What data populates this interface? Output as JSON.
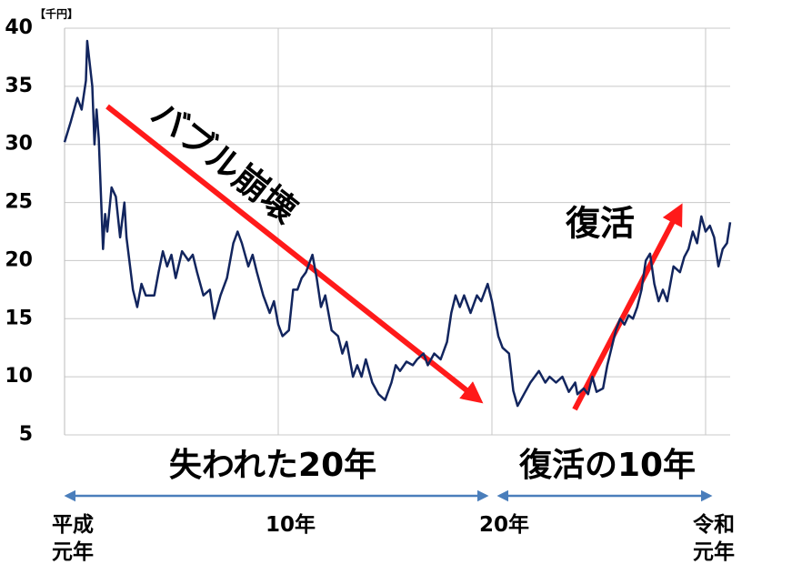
{
  "chart_data": {
    "type": "line",
    "unit_label": "【千円】",
    "color": "#12255e",
    "grid": true,
    "ylim": [
      5,
      40
    ],
    "yticks": [
      5,
      10,
      15,
      20,
      25,
      30,
      35,
      40
    ],
    "xlim": [
      0,
      31.15
    ],
    "xticks": [
      {
        "value": 0,
        "label": "平成元年"
      },
      {
        "value": 10,
        "label": "10年"
      },
      {
        "value": 20,
        "label": "20年"
      },
      {
        "value": 30,
        "label": "令和元年"
      }
    ],
    "x": [
      0,
      0.3,
      0.6,
      0.8,
      1.0,
      1.06,
      1.3,
      1.4,
      1.5,
      1.6,
      1.8,
      1.9,
      2.0,
      2.2,
      2.4,
      2.6,
      2.8,
      2.9,
      3.2,
      3.4,
      3.6,
      3.8,
      4.2,
      4.4,
      4.6,
      4.8,
      5.0,
      5.2,
      5.5,
      5.8,
      6.0,
      6.2,
      6.5,
      6.8,
      7.0,
      7.3,
      7.6,
      7.9,
      8.0,
      8.1,
      8.3,
      8.6,
      8.8,
      9.0,
      9.3,
      9.6,
      9.8,
      10.0,
      10.2,
      10.5,
      10.7,
      10.9,
      11.1,
      11.3,
      11.6,
      11.8,
      12.0,
      12.2,
      12.5,
      12.8,
      13.0,
      13.2,
      13.5,
      13.7,
      13.9,
      14.1,
      14.4,
      14.7,
      15.0,
      15.3,
      15.5,
      15.7,
      16.0,
      16.3,
      16.5,
      16.8,
      17.0,
      17.3,
      17.6,
      17.9,
      18.1,
      18.3,
      18.5,
      18.7,
      19.0,
      19.3,
      19.5,
      19.8,
      20.0,
      20.3,
      20.5,
      20.8,
      21.0,
      21.2,
      21.5,
      21.8,
      22.0,
      22.2,
      22.5,
      22.7,
      23.0,
      23.3,
      23.6,
      23.9,
      24.0,
      24.3,
      24.5,
      24.7,
      24.9,
      25.2,
      25.4,
      25.6,
      25.8,
      26.0,
      26.2,
      26.4,
      26.6,
      26.8,
      27.0,
      27.2,
      27.4,
      27.6,
      27.8,
      28.0,
      28.2,
      28.5,
      28.8,
      29.0,
      29.2,
      29.4,
      29.6,
      29.8,
      30.0,
      30.2,
      30.4,
      30.6,
      30.8,
      31.0,
      31.15
    ],
    "values": [
      30.2,
      32,
      34,
      33,
      35.5,
      38.9,
      35,
      30,
      33,
      30.5,
      21,
      24,
      22.5,
      26.3,
      25.5,
      22,
      25,
      22,
      17.5,
      16,
      18,
      17,
      17,
      19,
      20.8,
      19.5,
      20.5,
      18.5,
      20.8,
      20,
      20.5,
      19,
      17,
      17.5,
      15,
      17,
      18.5,
      21.5,
      22,
      22.5,
      21.5,
      19.5,
      20.5,
      19,
      17,
      15.5,
      16.5,
      14.5,
      13.5,
      14,
      17.5,
      17.5,
      18.5,
      19,
      20.5,
      18.5,
      16,
      17,
      14,
      13.5,
      12,
      13,
      10,
      11,
      10,
      11.5,
      9.5,
      8.5,
      8,
      9.5,
      11,
      10.5,
      11.3,
      11,
      11.5,
      12,
      11,
      12,
      11.5,
      13,
      15.5,
      17,
      16,
      17,
      15.5,
      17,
      16.5,
      18,
      16.5,
      13.5,
      12.5,
      12,
      8.8,
      7.5,
      8.5,
      9.5,
      10,
      10.5,
      9.5,
      10,
      9.5,
      10,
      8.7,
      9.5,
      8.5,
      9,
      8.5,
      10,
      8.7,
      9,
      11,
      12.5,
      14,
      15,
      14.5,
      15.3,
      15,
      16,
      17.5,
      20,
      20.6,
      18,
      16.5,
      17.5,
      16.5,
      19.5,
      19,
      20.3,
      21,
      22.5,
      21.5,
      23.8,
      22.5,
      23,
      22,
      19.5,
      21,
      21.5,
      23.3
    ],
    "annotations": [
      "バブル崩壊",
      "復活",
      "失われた20年",
      "復活の10年"
    ]
  }
}
